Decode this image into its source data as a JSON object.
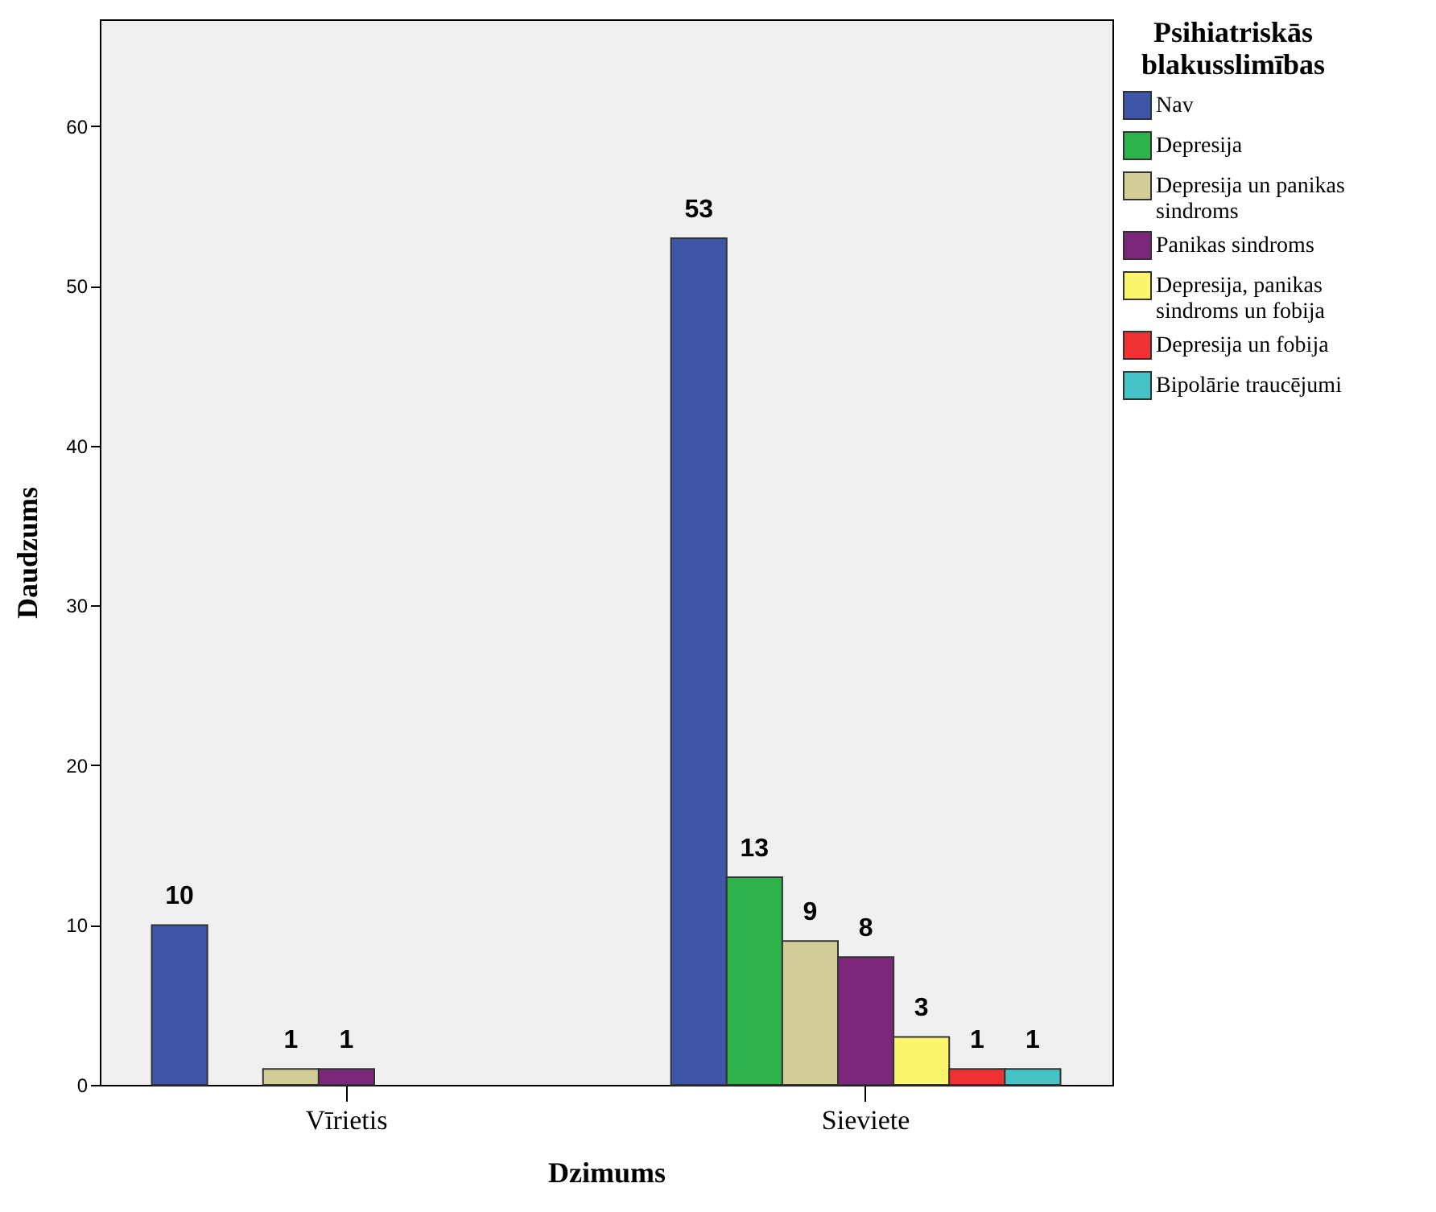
{
  "chart_data": {
    "type": "bar",
    "xlabel": "Dzimums",
    "ylabel": "Daudzums",
    "legend_title": "Psihiatriskās blakusslimības",
    "categories": [
      "Vīrietis",
      "Sieviete"
    ],
    "series": [
      {
        "name": "Nav",
        "color": "#3f55a8",
        "values": [
          10,
          53
        ]
      },
      {
        "name": "Depresija",
        "color": "#2eb34a",
        "values": [
          null,
          13
        ]
      },
      {
        "name": "Depresija un panikas sindroms",
        "color": "#d3cd97",
        "values": [
          1,
          9
        ]
      },
      {
        "name": "Panikas sindroms",
        "color": "#7b287b",
        "values": [
          1,
          8
        ]
      },
      {
        "name": "Depresija, panikas sindroms un fobija",
        "color": "#faf56b",
        "values": [
          null,
          3
        ]
      },
      {
        "name": "Depresija un fobija",
        "color": "#ee3234",
        "values": [
          null,
          1
        ]
      },
      {
        "name": "Bipolārie traucējumi",
        "color": "#45c3c6",
        "values": [
          null,
          1
        ]
      }
    ],
    "ylim": [
      0,
      66.7
    ],
    "yticks": [
      0,
      10,
      20,
      30,
      40,
      50,
      60
    ],
    "grid": false,
    "legend": "right",
    "data_labels": true
  }
}
